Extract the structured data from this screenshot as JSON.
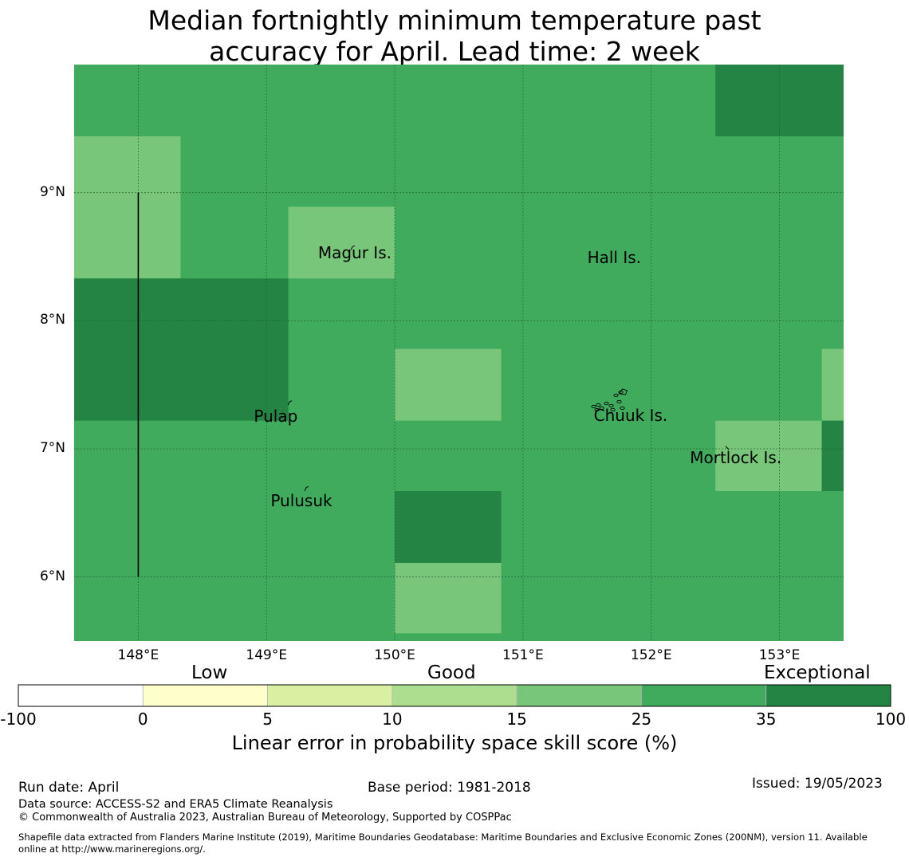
{
  "title": {
    "line1": "Median fortnightly minimum temperature past",
    "line2": "accuracy for April. Lead time: 2 week"
  },
  "map": {
    "lon_range": [
      147.5,
      153.5
    ],
    "lat_range": [
      5.5,
      10.0
    ],
    "lat_ticks": [
      {
        "value": 9,
        "label": "9°N"
      },
      {
        "value": 8,
        "label": "8°N"
      },
      {
        "value": 7,
        "label": "7°N"
      },
      {
        "value": 6,
        "label": "6°N"
      }
    ],
    "lon_ticks": [
      {
        "value": 148,
        "label": "148°E"
      },
      {
        "value": 149,
        "label": "149°E"
      },
      {
        "value": 150,
        "label": "150°E"
      },
      {
        "value": 151,
        "label": "151°E"
      },
      {
        "value": 152,
        "label": "152°E"
      },
      {
        "value": 153,
        "label": "153°E"
      }
    ],
    "background_color": "#41ab5d",
    "cells": [
      {
        "lon0": 147.5,
        "lon1": 148.33,
        "lat0": 8.33,
        "lat1": 9.44,
        "color": "#78c679"
      },
      {
        "lon0": 147.5,
        "lon1": 149.17,
        "lat0": 7.22,
        "lat1": 8.33,
        "color": "#238443"
      },
      {
        "lon0": 149.17,
        "lon1": 150.0,
        "lat0": 8.33,
        "lat1": 8.89,
        "color": "#78c679"
      },
      {
        "lon0": 150.0,
        "lon1": 150.83,
        "lat0": 7.22,
        "lat1": 7.78,
        "color": "#78c679"
      },
      {
        "lon0": 150.0,
        "lon1": 150.83,
        "lat0": 6.11,
        "lat1": 6.67,
        "color": "#238443"
      },
      {
        "lon0": 150.0,
        "lon1": 150.83,
        "lat0": 5.56,
        "lat1": 6.11,
        "color": "#78c679"
      },
      {
        "lon0": 152.5,
        "lon1": 153.5,
        "lat0": 9.44,
        "lat1": 10.0,
        "color": "#238443"
      },
      {
        "lon0": 152.5,
        "lon1": 153.33,
        "lat0": 6.67,
        "lat1": 7.22,
        "color": "#78c679"
      },
      {
        "lon0": 153.33,
        "lon1": 153.5,
        "lat0": 7.22,
        "lat1": 7.78,
        "color": "#78c679"
      },
      {
        "lon0": 153.33,
        "lon1": 153.5,
        "lat0": 6.67,
        "lat1": 7.22,
        "color": "#238443"
      }
    ],
    "boundary_line": {
      "lon": 148.0,
      "lat0": 6.0,
      "lat1": 9.0
    },
    "places": [
      {
        "name": "Magur Is.",
        "lon": 149.7,
        "lat": 8.52
      },
      {
        "name": "Hall Is.",
        "lon": 151.8,
        "lat": 8.48
      },
      {
        "name": "Pulap",
        "lon": 149.2,
        "lat": 7.24
      },
      {
        "name": "Chuuk Is.",
        "lon": 151.85,
        "lat": 7.25
      },
      {
        "name": "Mortlock Is.",
        "lon": 152.6,
        "lat": 6.92
      },
      {
        "name": "Pulusuk",
        "lon": 149.33,
        "lat": 6.58
      }
    ]
  },
  "colorbar": {
    "categories": [
      {
        "label": "Low",
        "position": "left"
      },
      {
        "label": "Good",
        "position": "center"
      },
      {
        "label": "Exceptional",
        "position": "right"
      }
    ],
    "bins": [
      {
        "from": -100,
        "to": 0,
        "color": "#ffffff"
      },
      {
        "from": 0,
        "to": 5,
        "color": "#ffffcc"
      },
      {
        "from": 5,
        "to": 10,
        "color": "#d9f0a3"
      },
      {
        "from": 10,
        "to": 15,
        "color": "#addd8e"
      },
      {
        "from": 15,
        "to": 25,
        "color": "#78c679"
      },
      {
        "from": 25,
        "to": 35,
        "color": "#41ab5d"
      },
      {
        "from": 35,
        "to": 100,
        "color": "#238443"
      }
    ],
    "ticks": [
      "-100",
      "0",
      "5",
      "10",
      "15",
      "25",
      "35",
      "100"
    ],
    "label": "Linear error in probability space skill score (%)"
  },
  "footer": {
    "run_date": "Run date: April",
    "base_period": "Base period: 1981-2018",
    "issued": "Issued: 19/05/2023",
    "data_source": "Data source: ACCESS-S2 and ERA5 Climate Reanalysis",
    "copyright": "© Commonwealth of Australia 2023, Australian Bureau of Meteorology, Supported by COSPPac",
    "shapefile_line1": "Shapefile data extracted from Flanders Marine Institute (2019), Maritime Boundaries Geodatabase: Maritime Boundaries and Exclusive Economic Zones (200NM), version 11. Available",
    "shapefile_line2": "online at http://www.marineregions.org/."
  }
}
